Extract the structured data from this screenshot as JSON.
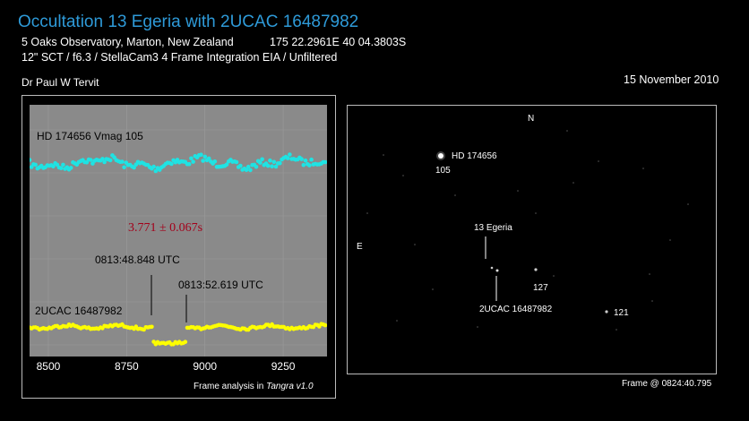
{
  "header": {
    "title": "Occultation 13 Egeria with 2UCAC 16487982",
    "observatory": "5 Oaks Observatory, Marton, New Zealand",
    "coordinates": "175 22.2961E 40 04.3803S",
    "equipment": "12\" SCT / f6.3 / StellaCam3 4 Frame Integration EIA / Unfiltered",
    "observer": "Dr Paul W Tervit",
    "date": "15 November 2010"
  },
  "lightcurve": {
    "comparison_label": "HD 174656 Vmag 105",
    "target_label": "2UCAC 16487982",
    "duration": "3.771 ± 0.067s",
    "disappearance_time": "0813:48.848 UTC",
    "reappearance_time": "0813:52.619 UTC",
    "x_ticks": [
      8500,
      8750,
      9000,
      9250
    ],
    "x_range": [
      8440,
      9390
    ],
    "colors": {
      "plot_bg": "#8a8a8a",
      "comparison": "#1fe3e3",
      "target": "#fdfd00",
      "duration_text": "#a4001a"
    },
    "credit_prefix": "Frame analysis in ",
    "credit_software": "Tangra v1.0"
  },
  "starfield": {
    "north_label": "N",
    "east_label": "E",
    "hd_label": "HD 174656",
    "hd_mag": "105",
    "asteroid_label": "13 Egeria",
    "target_label": "2UCAC 16487982",
    "star_127": "127",
    "star_121": "121",
    "frame_time": "Frame @ 0824:40.795"
  }
}
